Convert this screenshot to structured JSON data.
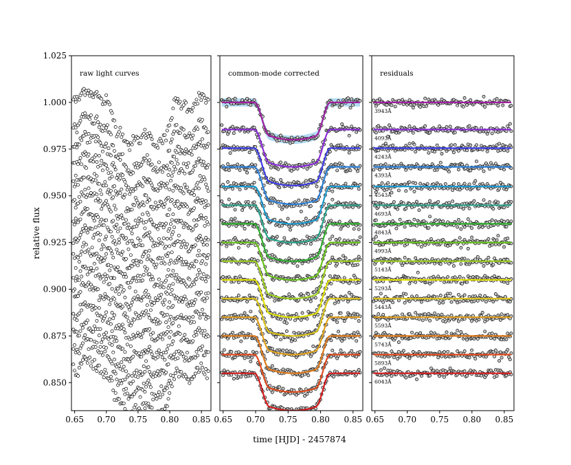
{
  "chart_data": {
    "type": "scatter",
    "ylabel": "relative flux",
    "xlabel": "time [HJD] - 2457874",
    "xlim": [
      0.645,
      0.865
    ],
    "ylim": [
      0.835,
      1.025
    ],
    "x_ticks": [
      "0.65",
      "0.70",
      "0.75",
      "0.80",
      "0.85"
    ],
    "y_ticks": [
      "0.850",
      "0.875",
      "0.900",
      "0.925",
      "0.950",
      "0.975",
      "1.000",
      "1.025"
    ],
    "transit": {
      "t0": 0.7575,
      "ingress_start": 0.698,
      "ingress_end": 0.722,
      "egress_start": 0.792,
      "egress_end": 0.815,
      "depth": 0.018
    },
    "panels": [
      {
        "title": "raw light curves",
        "content": "raw"
      },
      {
        "title": "common-mode corrected",
        "content": "corrected"
      },
      {
        "title": "residuals",
        "content": "residuals"
      }
    ],
    "series": [
      {
        "wavelength": "3943Å",
        "color": "#a020a0",
        "baseline": 1.0
      },
      {
        "wavelength": "4093Å",
        "color": "#8a2bd8",
        "baseline": 0.9855
      },
      {
        "wavelength": "4243Å",
        "color": "#3c3ce6",
        "baseline": 0.9755
      },
      {
        "wavelength": "4393Å",
        "color": "#2a7fd8",
        "baseline": 0.9655
      },
      {
        "wavelength": "4543Å",
        "color": "#1c9ad0",
        "baseline": 0.955
      },
      {
        "wavelength": "4693Å",
        "color": "#2aa58c",
        "baseline": 0.945
      },
      {
        "wavelength": "4843Å",
        "color": "#2fb02f",
        "baseline": 0.935
      },
      {
        "wavelength": "4993Å",
        "color": "#66c21a",
        "baseline": 0.925
      },
      {
        "wavelength": "5143Å",
        "color": "#9ad01c",
        "baseline": 0.915
      },
      {
        "wavelength": "5293Å",
        "color": "#e0e000",
        "baseline": 0.905
      },
      {
        "wavelength": "5443Å",
        "color": "#d9c21a",
        "baseline": 0.895
      },
      {
        "wavelength": "5593Å",
        "color": "#e0a01a",
        "baseline": 0.885
      },
      {
        "wavelength": "5743Å",
        "color": "#e07a1a",
        "baseline": 0.875
      },
      {
        "wavelength": "5893Å",
        "color": "#e04a1a",
        "baseline": 0.865
      },
      {
        "wavelength": "6043Å",
        "color": "#d81c1c",
        "baseline": 0.855
      }
    ]
  }
}
